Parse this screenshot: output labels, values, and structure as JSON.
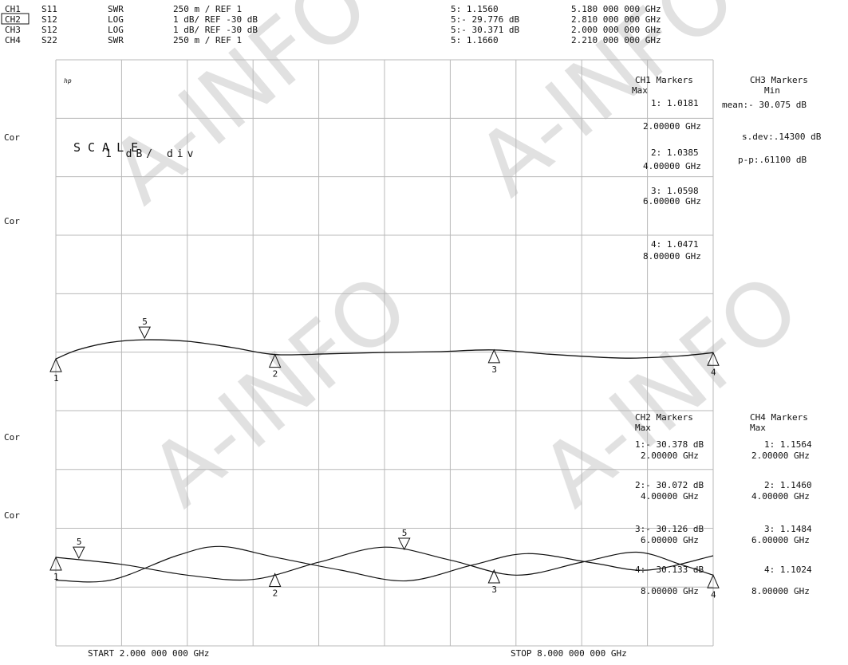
{
  "header": {
    "channels": [
      {
        "ch": "CH1",
        "param": "S11",
        "format": "SWR",
        "scale": "250 m / REF 1",
        "marker": "5: 1.1560",
        "freq": "5.180 000 000 GHz",
        "active": false
      },
      {
        "ch": "CH2",
        "param": "S12",
        "format": "LOG",
        "scale": "1 dB/ REF -30 dB",
        "marker": "5:- 29.776 dB",
        "freq": "2.810 000 000 GHz",
        "active": true
      },
      {
        "ch": "CH3",
        "param": "S12",
        "format": "LOG",
        "scale": "1 dB/ REF -30 dB",
        "marker": "5:- 30.371 dB",
        "freq": "2.000 000 000 GHz",
        "active": false
      },
      {
        "ch": "CH4",
        "param": "S22",
        "format": "SWR",
        "scale": "250 m / REF 1",
        "marker": "5: 1.1660",
        "freq": "2.210 000 000 GHz",
        "active": false
      }
    ]
  },
  "left_labels": [
    "Cor",
    "Cor",
    "Cor",
    "Cor"
  ],
  "panel_top": {
    "corner_mark": "hp",
    "scale_title": "SCALE",
    "scale_value": "1 dB/ div",
    "ch1_title": "CH1 Markers",
    "ch1_sub": "Max",
    "ch1_markers": [
      {
        "val": "1: 1.0181",
        "freq": "2.00000 GHz"
      },
      {
        "val": "2: 1.0385",
        "freq": "4.00000 GHz"
      },
      {
        "val": "3: 1.0598",
        "freq": "6.00000 GHz"
      },
      {
        "val": "4: 1.0471",
        "freq": "8.00000 GHz"
      }
    ],
    "ch3_title": "CH3 Markers",
    "ch3_sub": "Min",
    "ch3_stats": [
      "mean:- 30.075 dB",
      "s.dev:.14300 dB",
      "p-p:.61100 dB"
    ]
  },
  "panel_bottom": {
    "ch2_title": "CH2 Markers",
    "ch2_sub": "Max",
    "ch2_markers": [
      {
        "val": "1:- 30.378 dB",
        "freq": "2.00000 GHz"
      },
      {
        "val": "2:- 30.072 dB",
        "freq": "4.00000 GHz"
      },
      {
        "val": "3:- 30.126 dB",
        "freq": "6.00000 GHz"
      },
      {
        "val": "4:- 30.133 dB",
        "freq": "8.00000 GHz"
      }
    ],
    "ch4_title": "CH4 Markers",
    "ch4_sub": "Max",
    "ch4_markers": [
      {
        "val": "1: 1.1564",
        "freq": "2.00000 GHz"
      },
      {
        "val": "2: 1.1460",
        "freq": "4.00000 GHz"
      },
      {
        "val": "3: 1.1484",
        "freq": "6.00000 GHz"
      },
      {
        "val": "4: 1.1024",
        "freq": "8.00000 GHz"
      }
    ]
  },
  "footer": {
    "start": "START 2.000 000 000 GHz",
    "stop": "STOP 8.000 000 000 GHz"
  },
  "watermark": "A-INFO",
  "chart_data": {
    "type": "line",
    "x_range_ghz": [
      2,
      8
    ],
    "grid_divisions_x": 10,
    "grid_divisions_y": 10,
    "grid": true,
    "top_trace": {
      "name": "CH1 S11 SWR",
      "points": [
        [
          2.0,
          1.0181
        ],
        [
          2.2,
          1.06
        ],
        [
          2.5,
          1.095
        ],
        [
          2.81,
          1.107
        ],
        [
          3.2,
          1.1
        ],
        [
          3.6,
          1.072
        ],
        [
          4.0,
          1.0385
        ],
        [
          4.5,
          1.042
        ],
        [
          5.0,
          1.048
        ],
        [
          5.5,
          1.052
        ],
        [
          6.0,
          1.0598
        ],
        [
          6.5,
          1.04
        ],
        [
          7.0,
          1.025
        ],
        [
          7.3,
          1.022
        ],
        [
          7.7,
          1.032
        ],
        [
          8.0,
          1.0471
        ]
      ]
    },
    "bottom_traces": [
      {
        "name": "CH2 S12 LOG",
        "points": [
          [
            2.0,
            -30.378
          ],
          [
            2.6,
            -30.28
          ],
          [
            3.2,
            -30.13
          ],
          [
            3.8,
            -30.07
          ],
          [
            4.4,
            -30.31
          ],
          [
            5.0,
            -30.52
          ],
          [
            5.6,
            -30.34
          ],
          [
            6.2,
            -30.13
          ],
          [
            6.8,
            -30.31
          ],
          [
            7.3,
            -30.45
          ],
          [
            7.7,
            -30.28
          ],
          [
            8.0,
            -30.13
          ]
        ]
      },
      {
        "name": "CH3 S12 LOG",
        "points": [
          [
            2.0,
            -30.06
          ],
          [
            2.5,
            -30.06
          ],
          [
            3.1,
            -30.4
          ],
          [
            3.5,
            -30.53
          ],
          [
            4.0,
            -30.38
          ],
          [
            4.6,
            -30.2
          ],
          [
            5.2,
            -30.05
          ],
          [
            5.8,
            -30.27
          ],
          [
            6.3,
            -30.43
          ],
          [
            6.9,
            -30.3
          ],
          [
            7.4,
            -30.2
          ],
          [
            8.0,
            -30.4
          ]
        ]
      }
    ],
    "markers_top": [
      {
        "label": "1",
        "x": 2.0,
        "kind": "up"
      },
      {
        "label": "2",
        "x": 4.0,
        "kind": "up"
      },
      {
        "label": "3",
        "x": 6.0,
        "kind": "up"
      },
      {
        "label": "4",
        "x": 8.0,
        "kind": "up"
      },
      {
        "label": "5",
        "x": 2.81,
        "kind": "down"
      }
    ],
    "markers_bottom": [
      {
        "label": "1",
        "x": 2.0,
        "kind": "up"
      },
      {
        "label": "2",
        "x": 4.0,
        "kind": "up"
      },
      {
        "label": "3",
        "x": 6.0,
        "kind": "up"
      },
      {
        "label": "4",
        "x": 8.0,
        "kind": "up"
      },
      {
        "label": "5",
        "x": 2.21,
        "kind": "down"
      },
      {
        "label": "5",
        "x": 5.18,
        "kind": "down"
      }
    ]
  }
}
